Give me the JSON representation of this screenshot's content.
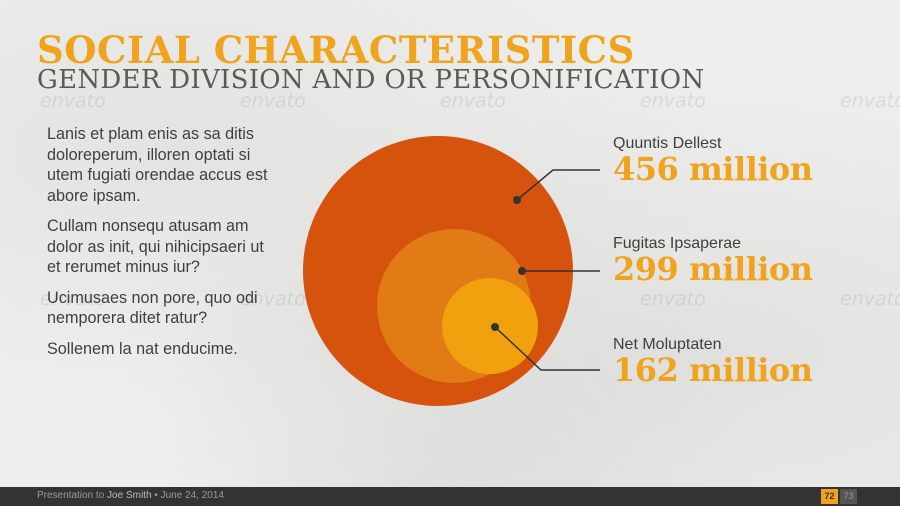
{
  "title": "SOCIAL CHARACTERISTICS",
  "subtitle": "GENDER DIVISION AND OR PERSONIFICATION",
  "paragraphs": [
    "Lanis et plam enis as sa ditis doloreperum, illoren optati si utem fugiati orendae accus est abore ipsam.",
    "Cullam nonsequ atusam am dolor as init, qui nihicipsaeri ut et rerumet minus iur?",
    "Ucimusaes non pore, quo odi nemporera ditet ratur?",
    "Sollenem la nat enducime."
  ],
  "watermark": "envato",
  "colors": {
    "accent": "#f0a31d",
    "outer_circle": "#d6530e",
    "middle_circle": "#e27a16",
    "inner_circle": "#f0a10d",
    "footer_bg": "#333333"
  },
  "chart_data": {
    "type": "nested-circles",
    "series": [
      {
        "name": "Quuntis Dellest",
        "value": 456,
        "display": "456 million"
      },
      {
        "name": "Fugitas Ipsaperae",
        "value": 299,
        "display": "299 million"
      },
      {
        "name": "Net Moluptaten",
        "value": 162,
        "display": "162 million"
      }
    ]
  },
  "footer": {
    "prefix": "Presentation to ",
    "name": "Joe Smith",
    "date": " • June 24, 2014",
    "page": "72",
    "next": "73"
  }
}
